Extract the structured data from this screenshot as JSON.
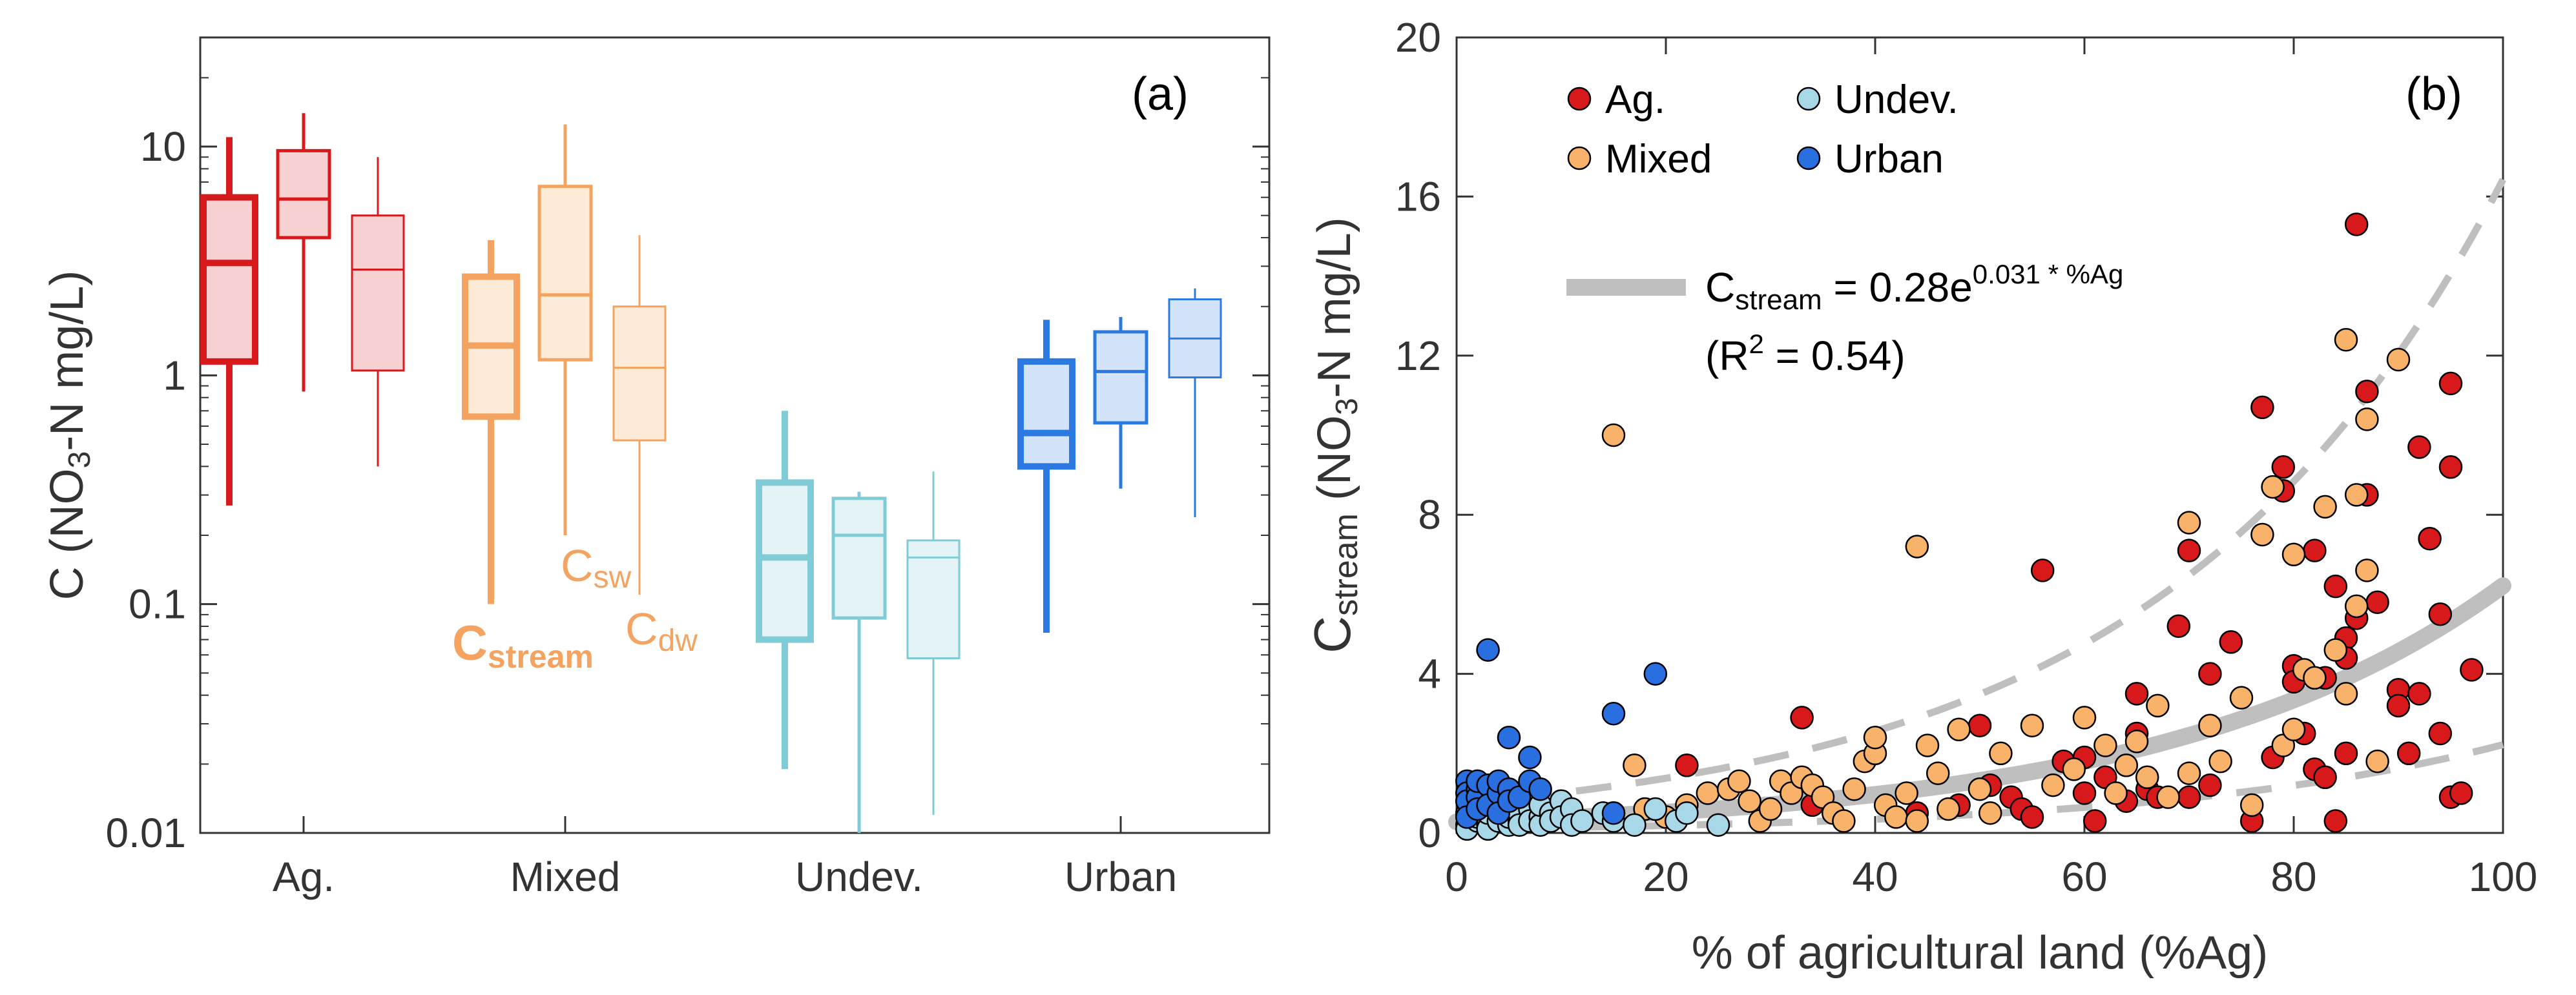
{
  "chart_data": [
    {
      "type": "box",
      "panel_label": "(a)",
      "ylabel": "C (NO3-N mg/L)",
      "ylabel_parts": {
        "pre": "C (NO",
        "sub": "3",
        "post": "-N mg/L)"
      },
      "yscale": "log",
      "ylim": [
        0.01,
        30
      ],
      "yticks": [
        0.01,
        0.1,
        1,
        10
      ],
      "yticklabels": [
        "0.01",
        "0.1",
        "1",
        "10"
      ],
      "categories": [
        "Ag.",
        "Mixed",
        "Undev.",
        "Urban"
      ],
      "variables": [
        "Cstream",
        "Csw",
        "Cdw"
      ],
      "annotations": [
        {
          "base": "C",
          "sub": "stream",
          "category": "Mixed",
          "variable": "Cstream"
        },
        {
          "base": "C",
          "sub": "sw",
          "category": "Mixed",
          "variable": "Csw"
        },
        {
          "base": "C",
          "sub": "dw",
          "category": "Mixed",
          "variable": "Cdw"
        }
      ],
      "colors": {
        "Ag.": "#d7191c",
        "Mixed": "#f4a460",
        "Undev.": "#80ccd6",
        "Urban": "#2a7ae2"
      },
      "fills": {
        "Ag.": "#f7d0d1",
        "Mixed": "#fdebd8",
        "Undev.": "#e4f3f6",
        "Urban": "#d3e4fa"
      },
      "groups": [
        {
          "category": "Ag.",
          "boxes": [
            {
              "variable": "Cstream",
              "whisker_low": 0.27,
              "q1": 1.15,
              "median": 3.1,
              "q3": 6.0,
              "whisker_high": 11.0
            },
            {
              "variable": "Csw",
              "whisker_low": 0.85,
              "q1": 4.0,
              "median": 5.9,
              "q3": 9.6,
              "whisker_high": 14.0
            },
            {
              "variable": "Cdw",
              "whisker_low": 0.4,
              "q1": 1.05,
              "median": 2.9,
              "q3": 5.0,
              "whisker_high": 9.0
            }
          ]
        },
        {
          "category": "Mixed",
          "boxes": [
            {
              "variable": "Cstream",
              "whisker_low": 0.1,
              "q1": 0.66,
              "median": 1.35,
              "q3": 2.7,
              "whisker_high": 3.9
            },
            {
              "variable": "Csw",
              "whisker_low": 0.2,
              "q1": 1.17,
              "median": 2.25,
              "q3": 6.7,
              "whisker_high": 12.5
            },
            {
              "variable": "Cdw",
              "whisker_low": 0.11,
              "q1": 0.52,
              "median": 1.08,
              "q3": 2.0,
              "whisker_high": 4.1
            }
          ]
        },
        {
          "category": "Undev.",
          "boxes": [
            {
              "variable": "Cstream",
              "whisker_low": 0.019,
              "q1": 0.07,
              "median": 0.16,
              "q3": 0.34,
              "whisker_high": 0.7
            },
            {
              "variable": "Csw",
              "whisker_low": 0.01,
              "q1": 0.087,
              "median": 0.2,
              "q3": 0.29,
              "whisker_high": 0.31
            },
            {
              "variable": "Cdw",
              "whisker_low": 0.012,
              "q1": 0.058,
              "median": 0.16,
              "q3": 0.19,
              "whisker_high": 0.38
            }
          ]
        },
        {
          "category": "Urban",
          "boxes": [
            {
              "variable": "Cstream",
              "whisker_low": 0.075,
              "q1": 0.4,
              "median": 0.56,
              "q3": 1.15,
              "whisker_high": 1.75
            },
            {
              "variable": "Csw",
              "whisker_low": 0.32,
              "q1": 0.62,
              "median": 1.04,
              "q3": 1.55,
              "whisker_high": 1.8
            },
            {
              "variable": "Cdw",
              "whisker_low": 0.24,
              "q1": 0.98,
              "median": 1.45,
              "q3": 2.15,
              "whisker_high": 2.4
            }
          ]
        }
      ]
    },
    {
      "type": "scatter",
      "panel_label": "(b)",
      "xlabel": "% of agricultural land (%Ag)",
      "ylabel": "Cstream (NO3-N mg/L)",
      "ylabel_parts": {
        "C": "C",
        "sub_stream": "stream",
        "pre": " (NO",
        "sub3": "3",
        "post": "-N mg/L)"
      },
      "xlim": [
        0,
        100
      ],
      "ylim": [
        0,
        20
      ],
      "xticks": [
        0,
        20,
        40,
        60,
        80,
        100
      ],
      "yticks": [
        0,
        4,
        8,
        12,
        16,
        20
      ],
      "legend": {
        "placement": "top-left",
        "entries": [
          {
            "name": "Ag.",
            "color": "#d7191c"
          },
          {
            "name": "Undev.",
            "color": "#a8d8e8"
          },
          {
            "name": "Mixed",
            "color": "#f8b26a"
          },
          {
            "name": "Urban",
            "color": "#2a6fe0"
          }
        ]
      },
      "fit": {
        "label_parts": {
          "lhs": "C",
          "lhs_sub": "stream",
          "mid": " = 0.28e",
          "exp": "0.031 * %Ag"
        },
        "r2_parts": {
          "pre": "(R",
          "sup": "2",
          "post": " = 0.54)"
        },
        "a": 0.28,
        "b": 0.031,
        "upper": {
          "a": 0.74,
          "b": 0.031
        },
        "lower": {
          "a": 0.1,
          "b": 0.031
        },
        "color": "#bfbfbf"
      },
      "series": [
        {
          "name": "Ag.",
          "color": "#d7191c",
          "points": [
            [
              15,
              0.5
            ],
            [
              22,
              1.7
            ],
            [
              33,
              2.9
            ],
            [
              34,
              0.7
            ],
            [
              44,
              0.5
            ],
            [
              48,
              0.7
            ],
            [
              50,
              2.7
            ],
            [
              51,
              1.2
            ],
            [
              53,
              0.9
            ],
            [
              54,
              0.6
            ],
            [
              55,
              0.4
            ],
            [
              56,
              6.6
            ],
            [
              58,
              1.8
            ],
            [
              60,
              1.9
            ],
            [
              60,
              1.0
            ],
            [
              61,
              0.3
            ],
            [
              62,
              1.4
            ],
            [
              64,
              0.8
            ],
            [
              65,
              3.5
            ],
            [
              65,
              2.5
            ],
            [
              66,
              1.1
            ],
            [
              67,
              0.9
            ],
            [
              69,
              5.2
            ],
            [
              70,
              7.1
            ],
            [
              70,
              0.9
            ],
            [
              72,
              4.0
            ],
            [
              72,
              1.2
            ],
            [
              74,
              4.8
            ],
            [
              76,
              0.3
            ],
            [
              77,
              10.7
            ],
            [
              78,
              1.9
            ],
            [
              79,
              9.2
            ],
            [
              79,
              8.6
            ],
            [
              80,
              4.2
            ],
            [
              80,
              3.8
            ],
            [
              81,
              2.5
            ],
            [
              82,
              7.1
            ],
            [
              82,
              1.6
            ],
            [
              83,
              3.9
            ],
            [
              83,
              1.4
            ],
            [
              84,
              6.2
            ],
            [
              84,
              0.3
            ],
            [
              85,
              4.9
            ],
            [
              85,
              4.4
            ],
            [
              85,
              2.0
            ],
            [
              86,
              15.3
            ],
            [
              86,
              5.4
            ],
            [
              87,
              11.1
            ],
            [
              87,
              8.5
            ],
            [
              88,
              5.8
            ],
            [
              90,
              3.6
            ],
            [
              90,
              3.2
            ],
            [
              91,
              2.0
            ],
            [
              92,
              9.7
            ],
            [
              92,
              3.5
            ],
            [
              93,
              7.4
            ],
            [
              94,
              5.5
            ],
            [
              94,
              2.5
            ],
            [
              95,
              11.3
            ],
            [
              95,
              9.2
            ],
            [
              95,
              0.9
            ],
            [
              96,
              1.0
            ],
            [
              97,
              4.1
            ]
          ]
        },
        {
          "name": "Mixed",
          "color": "#f8b26a",
          "points": [
            [
              15,
              10.0
            ],
            [
              17,
              1.7
            ],
            [
              18,
              0.6
            ],
            [
              20,
              0.4
            ],
            [
              22,
              0.7
            ],
            [
              24,
              1.0
            ],
            [
              26,
              1.1
            ],
            [
              27,
              1.3
            ],
            [
              28,
              0.8
            ],
            [
              29,
              0.3
            ],
            [
              30,
              0.6
            ],
            [
              31,
              1.3
            ],
            [
              32,
              1.0
            ],
            [
              33,
              1.4
            ],
            [
              34,
              1.2
            ],
            [
              35,
              0.9
            ],
            [
              36,
              0.5
            ],
            [
              37,
              0.3
            ],
            [
              38,
              1.1
            ],
            [
              39,
              1.8
            ],
            [
              40,
              2.0
            ],
            [
              40,
              2.4
            ],
            [
              41,
              0.7
            ],
            [
              42,
              0.4
            ],
            [
              43,
              1.0
            ],
            [
              44,
              0.3
            ],
            [
              44,
              7.2
            ],
            [
              45,
              2.2
            ],
            [
              46,
              1.5
            ],
            [
              47,
              0.6
            ],
            [
              48,
              2.6
            ],
            [
              50,
              1.1
            ],
            [
              51,
              0.5
            ],
            [
              52,
              2.0
            ],
            [
              55,
              2.7
            ],
            [
              57,
              1.2
            ],
            [
              59,
              1.6
            ],
            [
              60,
              2.9
            ],
            [
              62,
              2.2
            ],
            [
              63,
              1.0
            ],
            [
              64,
              1.7
            ],
            [
              65,
              2.3
            ],
            [
              66,
              1.4
            ],
            [
              67,
              3.2
            ],
            [
              68,
              0.9
            ],
            [
              70,
              7.8
            ],
            [
              70,
              1.5
            ],
            [
              72,
              2.7
            ],
            [
              73,
              1.8
            ],
            [
              75,
              3.4
            ],
            [
              76,
              0.7
            ],
            [
              77,
              7.5
            ],
            [
              78,
              8.7
            ],
            [
              79,
              2.2
            ],
            [
              80,
              7.0
            ],
            [
              80,
              2.6
            ],
            [
              81,
              4.1
            ],
            [
              82,
              3.9
            ],
            [
              83,
              8.2
            ],
            [
              84,
              4.6
            ],
            [
              85,
              12.4
            ],
            [
              85,
              3.5
            ],
            [
              86,
              8.5
            ],
            [
              86,
              5.7
            ],
            [
              87,
              10.4
            ],
            [
              87,
              6.6
            ],
            [
              88,
              1.8
            ],
            [
              90,
              11.9
            ]
          ]
        },
        {
          "name": "Undev.",
          "color": "#a8d8e8",
          "points": [
            [
              1,
              0.2
            ],
            [
              1,
              0.5
            ],
            [
              1,
              0.8
            ],
            [
              1,
              0.1
            ],
            [
              2,
              0.3
            ],
            [
              2,
              0.6
            ],
            [
              2,
              0.4
            ],
            [
              2,
              0.9
            ],
            [
              3,
              0.2
            ],
            [
              3,
              0.7
            ],
            [
              3,
              0.1
            ],
            [
              3,
              0.5
            ],
            [
              4,
              0.3
            ],
            [
              4,
              0.8
            ],
            [
              4,
              0.6
            ],
            [
              5,
              0.2
            ],
            [
              5,
              0.4
            ],
            [
              5,
              0.7
            ],
            [
              6,
              0.3
            ],
            [
              6,
              0.5
            ],
            [
              6,
              0.2
            ],
            [
              7,
              0.6
            ],
            [
              7,
              0.3
            ],
            [
              8,
              0.4
            ],
            [
              8,
              0.2
            ],
            [
              8,
              0.7
            ],
            [
              9,
              0.5
            ],
            [
              9,
              0.3
            ],
            [
              10,
              0.8
            ],
            [
              10,
              0.4
            ],
            [
              11,
              0.6
            ],
            [
              11,
              0.2
            ],
            [
              12,
              0.3
            ],
            [
              14,
              0.5
            ],
            [
              15,
              0.3
            ],
            [
              17,
              0.2
            ],
            [
              19,
              0.6
            ],
            [
              21,
              0.3
            ],
            [
              22,
              0.5
            ],
            [
              25,
              0.2
            ]
          ]
        },
        {
          "name": "Urban",
          "color": "#2a6fe0",
          "points": [
            [
              1,
              1.3
            ],
            [
              1,
              1.0
            ],
            [
              1,
              0.8
            ],
            [
              1,
              0.4
            ],
            [
              2,
              1.1
            ],
            [
              2,
              0.9
            ],
            [
              2,
              1.3
            ],
            [
              2,
              0.6
            ],
            [
              3,
              1.2
            ],
            [
              3,
              0.7
            ],
            [
              3,
              4.6
            ],
            [
              4,
              1.0
            ],
            [
              4,
              1.3
            ],
            [
              4,
              0.5
            ],
            [
              5,
              2.4
            ],
            [
              5,
              1.1
            ],
            [
              5,
              0.8
            ],
            [
              6,
              0.9
            ],
            [
              7,
              1.9
            ],
            [
              7,
              1.3
            ],
            [
              8,
              1.1
            ],
            [
              15,
              3.0
            ],
            [
              15,
              0.5
            ],
            [
              19,
              4.0
            ]
          ]
        }
      ]
    }
  ]
}
